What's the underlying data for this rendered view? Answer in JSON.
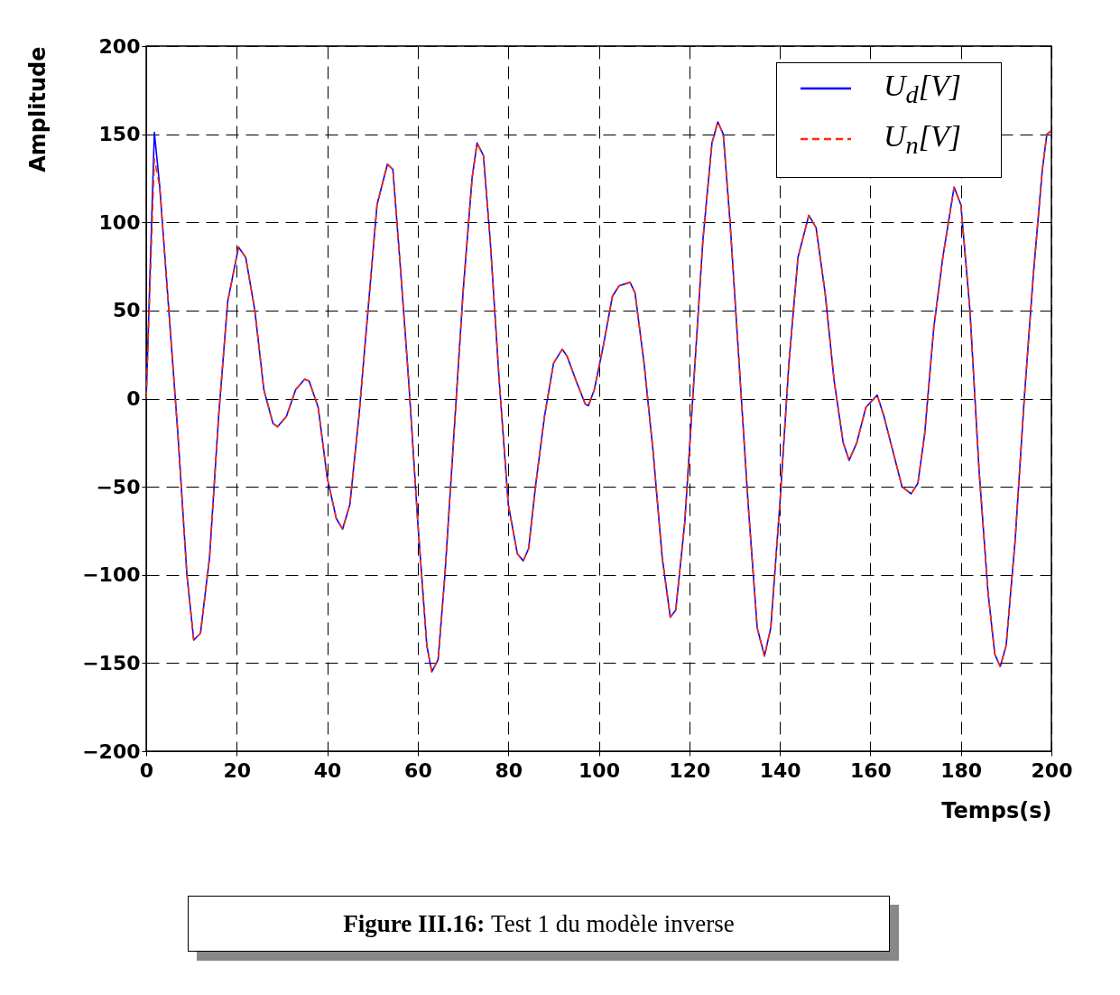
{
  "chart_data": {
    "type": "line",
    "xlabel": "Temps(s)",
    "ylabel": "Amplitude",
    "x": [
      0,
      1.8,
      3,
      5,
      7,
      9,
      10.5,
      12,
      14,
      16,
      18,
      20.4,
      22,
      24,
      26,
      28,
      29,
      31,
      33,
      35,
      36,
      38,
      40,
      42,
      43.4,
      45,
      47,
      49,
      51,
      53.3,
      54.5,
      56,
      58,
      60,
      62,
      63.1,
      64.5,
      66,
      68,
      70,
      72,
      73.1,
      74.5,
      76,
      78,
      80,
      82,
      83.3,
      84.5,
      86,
      88,
      90,
      91.9,
      93,
      95,
      97,
      97.7,
      99,
      101,
      103,
      104.5,
      106.9,
      108,
      110,
      112,
      114,
      115.8,
      117,
      119,
      121,
      123,
      125,
      126.3,
      127.5,
      129,
      131,
      133,
      135,
      136.6,
      138,
      140,
      142,
      144,
      146.4,
      148,
      150,
      152,
      154,
      155.3,
      157,
      159,
      161.5,
      163,
      165,
      167,
      169,
      170.5,
      172,
      174,
      176,
      178.5,
      180,
      182,
      184,
      186,
      187.5,
      188.7,
      190,
      192,
      194,
      196,
      198,
      199,
      200
    ],
    "series": [
      {
        "name": "U$_{d}$[V]",
        "color": "#0000ff",
        "line_style": "solid",
        "values": [
          0,
          151,
          120,
          50,
          -20,
          -100,
          -137,
          -133,
          -90,
          -10,
          55,
          86,
          80,
          50,
          5,
          -14,
          -16,
          -10,
          5,
          11,
          10,
          -5,
          -45,
          -68,
          -74,
          -60,
          -10,
          50,
          110,
          133,
          130,
          80,
          10,
          -70,
          -140,
          -155,
          -148,
          -100,
          -20,
          60,
          125,
          145,
          138,
          90,
          10,
          -60,
          -88,
          -92,
          -85,
          -50,
          -10,
          20,
          28,
          24,
          10,
          -3,
          -4,
          5,
          30,
          58,
          64,
          66,
          60,
          20,
          -30,
          -90,
          -124,
          -120,
          -70,
          10,
          90,
          145,
          157,
          150,
          100,
          20,
          -60,
          -130,
          -146,
          -130,
          -60,
          20,
          80,
          104,
          97,
          60,
          10,
          -25,
          -35,
          -25,
          -5,
          2,
          -10,
          -30,
          -50,
          -54,
          -48,
          -20,
          40,
          80,
          120,
          110,
          50,
          -40,
          -110,
          -145,
          -152,
          -140,
          -80,
          0,
          70,
          130,
          150,
          152
        ]
      },
      {
        "name": "U$_{n}$[V]",
        "color": "#ff2a00",
        "line_style": "dashed",
        "values": [
          0,
          136,
          120,
          50,
          -20,
          -100,
          -137,
          -133,
          -90,
          -10,
          55,
          86,
          80,
          50,
          5,
          -14,
          -16,
          -10,
          5,
          11,
          10,
          -5,
          -45,
          -68,
          -74,
          -60,
          -10,
          50,
          110,
          133,
          130,
          80,
          10,
          -70,
          -140,
          -155,
          -148,
          -100,
          -20,
          60,
          125,
          145,
          138,
          90,
          10,
          -60,
          -88,
          -92,
          -85,
          -50,
          -10,
          20,
          28,
          24,
          10,
          -3,
          -4,
          5,
          30,
          58,
          64,
          66,
          60,
          20,
          -30,
          -90,
          -124,
          -120,
          -70,
          10,
          90,
          145,
          157,
          150,
          100,
          20,
          -60,
          -130,
          -146,
          -130,
          -60,
          20,
          80,
          104,
          97,
          60,
          10,
          -25,
          -35,
          -25,
          -5,
          2,
          -10,
          -30,
          -50,
          -54,
          -48,
          -20,
          40,
          80,
          120,
          110,
          50,
          -40,
          -110,
          -145,
          -152,
          -140,
          -80,
          0,
          70,
          130,
          150,
          152
        ]
      }
    ],
    "xlim": [
      0,
      200
    ],
    "xticks": [
      0,
      20,
      40,
      60,
      80,
      100,
      120,
      140,
      160,
      180,
      200
    ],
    "ylim": [
      -200,
      200
    ],
    "yticks": [
      -200,
      -150,
      -100,
      -50,
      0,
      50,
      100,
      150,
      200
    ],
    "grid": true,
    "legend": "top right",
    "marker": "none",
    "annotations": [
      "Figure III.16: Test 1 du modèle inverse"
    ]
  }
}
